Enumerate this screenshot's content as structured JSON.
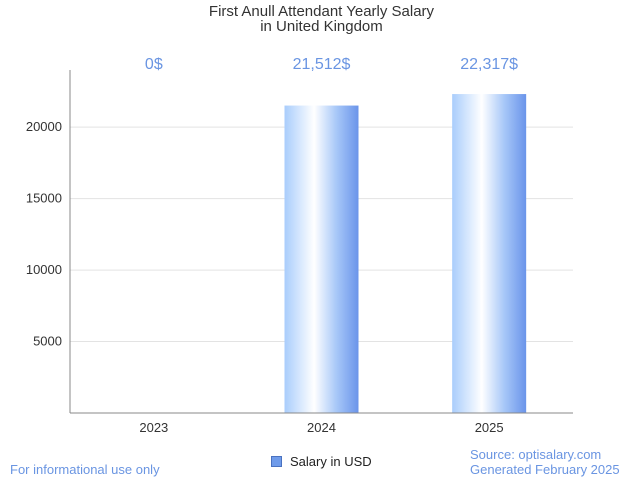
{
  "chart_data": {
    "type": "bar",
    "title": "First Anull Attendant Yearly Salary",
    "subtitle": "in United Kingdom",
    "categories": [
      "2023",
      "2024",
      "2025"
    ],
    "series": [
      {
        "name": "Salary in USD",
        "values": [
          0,
          21512,
          22317
        ]
      }
    ],
    "data_labels": [
      "0$",
      "21,512$",
      "22,317$"
    ],
    "yticks": [
      5000,
      10000,
      15000,
      20000
    ],
    "ylim": [
      0,
      24000
    ],
    "grid": true,
    "legend_position": "bottom-center",
    "colors": {
      "bar_light": "#ffffff",
      "bar_mid": "#b8d6ff",
      "bar_dark": "#6f9bea",
      "label": "#6a95e2"
    }
  },
  "footer": {
    "left": "For informational use only",
    "source": "Source: optisalary.com",
    "generated": "Generated February 2025"
  }
}
